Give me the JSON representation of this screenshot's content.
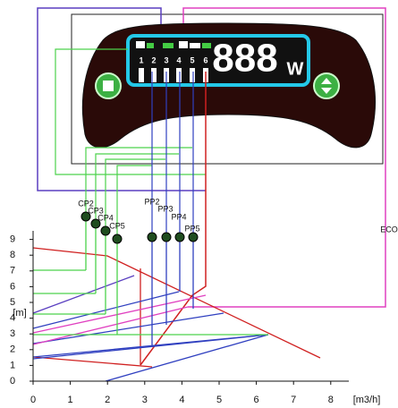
{
  "display": {
    "positions": [
      "1",
      "2",
      "3",
      "4",
      "5",
      "6"
    ],
    "digits": "888",
    "unit": "W"
  },
  "labels": {
    "eco": "ECO",
    "cp": [
      "CP2",
      "CP3",
      "CP4",
      "CP5"
    ],
    "pp": [
      "PP2",
      "PP3",
      "PP4",
      "PP5"
    ]
  },
  "axes": {
    "y_label": "[m]",
    "x_label": "[m3/h]",
    "xticks": [
      0,
      1,
      2,
      3,
      4,
      5,
      6,
      7,
      8
    ],
    "yticks": [
      0,
      1,
      2,
      3,
      4,
      5,
      6,
      7,
      8,
      9
    ]
  }
}
